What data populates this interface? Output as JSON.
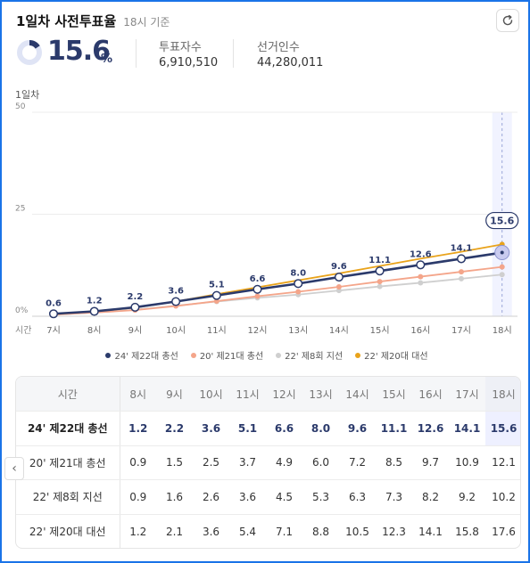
{
  "header": {
    "title": "1일차 사전투표율",
    "subtitle": "18시 기준"
  },
  "summary": {
    "rate": "15.6",
    "rate_unit": "%",
    "rate_value": 15.6,
    "voters_label": "투표자수",
    "voters_value": "6,910,510",
    "electorate_label": "선거인수",
    "electorate_value": "44,280,011"
  },
  "chart_caption": "1일차",
  "table": {
    "header_label": "시간",
    "nav_icon": "chevron-left-icon"
  },
  "colors": {
    "s24": "#2b3a6b",
    "s20": "#f4a58a",
    "s22b": "#cfcfcf",
    "s22a": "#e9a31b",
    "current_band": "#f1f3ff"
  },
  "chart_data": {
    "type": "line",
    "x": [
      "7시",
      "8시",
      "9시",
      "10시",
      "11시",
      "12시",
      "13시",
      "14시",
      "15시",
      "16시",
      "17시",
      "18시"
    ],
    "ylim": [
      0,
      50
    ],
    "yticks": [
      "0%",
      "25",
      "50"
    ],
    "ytick_values": [
      0,
      25,
      50
    ],
    "xlabel_prefix": "시간",
    "highlight_x": "18시",
    "series": [
      {
        "name": "24' 제22대 총선",
        "key": "s24",
        "values": [
          0.6,
          1.2,
          2.2,
          3.6,
          5.1,
          6.6,
          8.0,
          9.6,
          11.1,
          12.6,
          14.1,
          15.6
        ],
        "labels": [
          "0.6",
          "1.2",
          "2.2",
          "3.6",
          "5.1",
          "6.6",
          "8.0",
          "9.6",
          "11.1",
          "12.6",
          "14.1",
          "15.6"
        ]
      },
      {
        "name": "20' 제21대 총선",
        "key": "s20",
        "values": [
          0.4,
          0.9,
          1.5,
          2.5,
          3.7,
          4.9,
          6.0,
          7.2,
          8.5,
          9.7,
          10.9,
          12.1
        ]
      },
      {
        "name": "22' 제8회 지선",
        "key": "s22b",
        "values": [
          0.4,
          0.9,
          1.6,
          2.6,
          3.6,
          4.5,
          5.3,
          6.3,
          7.3,
          8.2,
          9.2,
          10.2
        ]
      },
      {
        "name": "22' 제20대 대선",
        "key": "s22a",
        "values": [
          0.5,
          1.2,
          2.1,
          3.6,
          5.4,
          7.1,
          8.8,
          10.5,
          12.3,
          14.1,
          15.8,
          17.6
        ]
      }
    ]
  },
  "table_rows": [
    {
      "name": "24' 제22대 총선",
      "values": [
        "1.2",
        "2.2",
        "3.6",
        "5.1",
        "6.6",
        "8.0",
        "9.6",
        "11.1",
        "12.6",
        "14.1",
        "15.6"
      ]
    },
    {
      "name": "20' 제21대 총선",
      "values": [
        "0.9",
        "1.5",
        "2.5",
        "3.7",
        "4.9",
        "6.0",
        "7.2",
        "8.5",
        "9.7",
        "10.9",
        "12.1"
      ]
    },
    {
      "name": "22' 제8회 지선",
      "values": [
        "0.9",
        "1.6",
        "2.6",
        "3.6",
        "4.5",
        "5.3",
        "6.3",
        "7.3",
        "8.2",
        "9.2",
        "10.2"
      ]
    },
    {
      "name": "22' 제20대 대선",
      "values": [
        "1.2",
        "2.1",
        "3.6",
        "5.4",
        "7.1",
        "8.8",
        "10.5",
        "12.3",
        "14.1",
        "15.8",
        "17.6"
      ]
    }
  ],
  "table_hours": [
    "8시",
    "9시",
    "10시",
    "11시",
    "12시",
    "13시",
    "14시",
    "15시",
    "16시",
    "17시",
    "18시"
  ]
}
